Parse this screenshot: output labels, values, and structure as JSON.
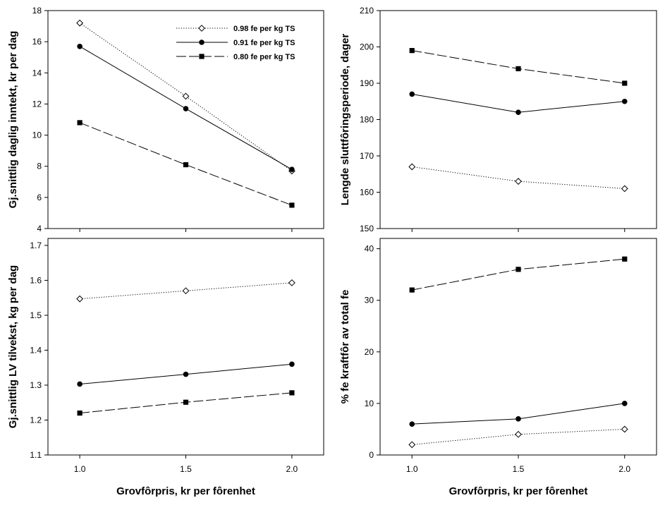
{
  "chart_data": [
    {
      "type": "line",
      "panel": "top-left",
      "ylabel": "Gj.snittlig daglig inntekt, kr per dag",
      "xlabel": "",
      "x": [
        1.0,
        1.5,
        2.0
      ],
      "xticks": [
        "1.0",
        "1.5",
        "2.0"
      ],
      "xlim": [
        0.85,
        2.15
      ],
      "ylim": [
        4,
        18
      ],
      "yticks": [
        "4",
        "6",
        "8",
        "10",
        "12",
        "14",
        "16",
        "18"
      ],
      "legend": "top-right",
      "grid": false,
      "series": [
        {
          "name": "0.98 fe per kg TS",
          "style": "dotted",
          "marker": "diamond-open",
          "values": [
            17.2,
            12.5,
            7.7
          ]
        },
        {
          "name": "0.91 fe per kg TS",
          "style": "solid",
          "marker": "circle-filled",
          "values": [
            15.7,
            11.7,
            7.8
          ]
        },
        {
          "name": "0.80 fe per kg TS",
          "style": "long-dash",
          "marker": "square-filled",
          "values": [
            10.8,
            8.1,
            5.5
          ]
        }
      ]
    },
    {
      "type": "line",
      "panel": "top-right",
      "ylabel": "Lengde sluttfôringsperiode, dager",
      "xlabel": "",
      "x": [
        1.0,
        1.5,
        2.0
      ],
      "xticks": [
        "1.0",
        "1.5",
        "2.0"
      ],
      "xlim": [
        0.85,
        2.15
      ],
      "ylim": [
        150,
        210
      ],
      "yticks": [
        "150",
        "160",
        "170",
        "180",
        "190",
        "200",
        "210"
      ],
      "grid": false,
      "series": [
        {
          "style": "dotted",
          "marker": "diamond-open",
          "values": [
            167,
            163,
            161
          ]
        },
        {
          "style": "solid",
          "marker": "circle-filled",
          "values": [
            187,
            182,
            185
          ]
        },
        {
          "style": "long-dash",
          "marker": "square-filled",
          "values": [
            199,
            194,
            190
          ]
        }
      ]
    },
    {
      "type": "line",
      "panel": "bottom-left",
      "ylabel": "Gj.snittlig LV tilvekst, kg per dag",
      "xlabel": "Grovfôrpris, kr per fôrenhet",
      "x": [
        1.0,
        1.5,
        2.0
      ],
      "xticks": [
        "1.0",
        "1.5",
        "2.0"
      ],
      "xlim": [
        0.85,
        2.15
      ],
      "ylim": [
        1.1,
        1.72
      ],
      "yticks": [
        "1.1",
        "1.2",
        "1.3",
        "1.4",
        "1.5",
        "1.6",
        "1.7"
      ],
      "grid": false,
      "series": [
        {
          "style": "dotted",
          "marker": "diamond-open",
          "values": [
            1.547,
            1.57,
            1.593
          ]
        },
        {
          "style": "solid",
          "marker": "circle-filled",
          "values": [
            1.303,
            1.331,
            1.36
          ]
        },
        {
          "style": "long-dash",
          "marker": "square-filled",
          "values": [
            1.22,
            1.251,
            1.278
          ]
        }
      ]
    },
    {
      "type": "line",
      "panel": "bottom-right",
      "ylabel": "% fe kraftfôr av total fe",
      "xlabel": "Grovfôrpris, kr per fôrenhet",
      "x": [
        1.0,
        1.5,
        2.0
      ],
      "xticks": [
        "1.0",
        "1.5",
        "2.0"
      ],
      "xlim": [
        0.85,
        2.15
      ],
      "ylim": [
        0,
        42
      ],
      "yticks": [
        "0",
        "10",
        "20",
        "30",
        "40"
      ],
      "grid": false,
      "series": [
        {
          "style": "dotted",
          "marker": "diamond-open",
          "values": [
            2,
            4,
            5
          ]
        },
        {
          "style": "solid",
          "marker": "circle-filled",
          "values": [
            6,
            7,
            10
          ]
        },
        {
          "style": "long-dash",
          "marker": "square-filled",
          "values": [
            32,
            36,
            38
          ]
        }
      ]
    }
  ]
}
